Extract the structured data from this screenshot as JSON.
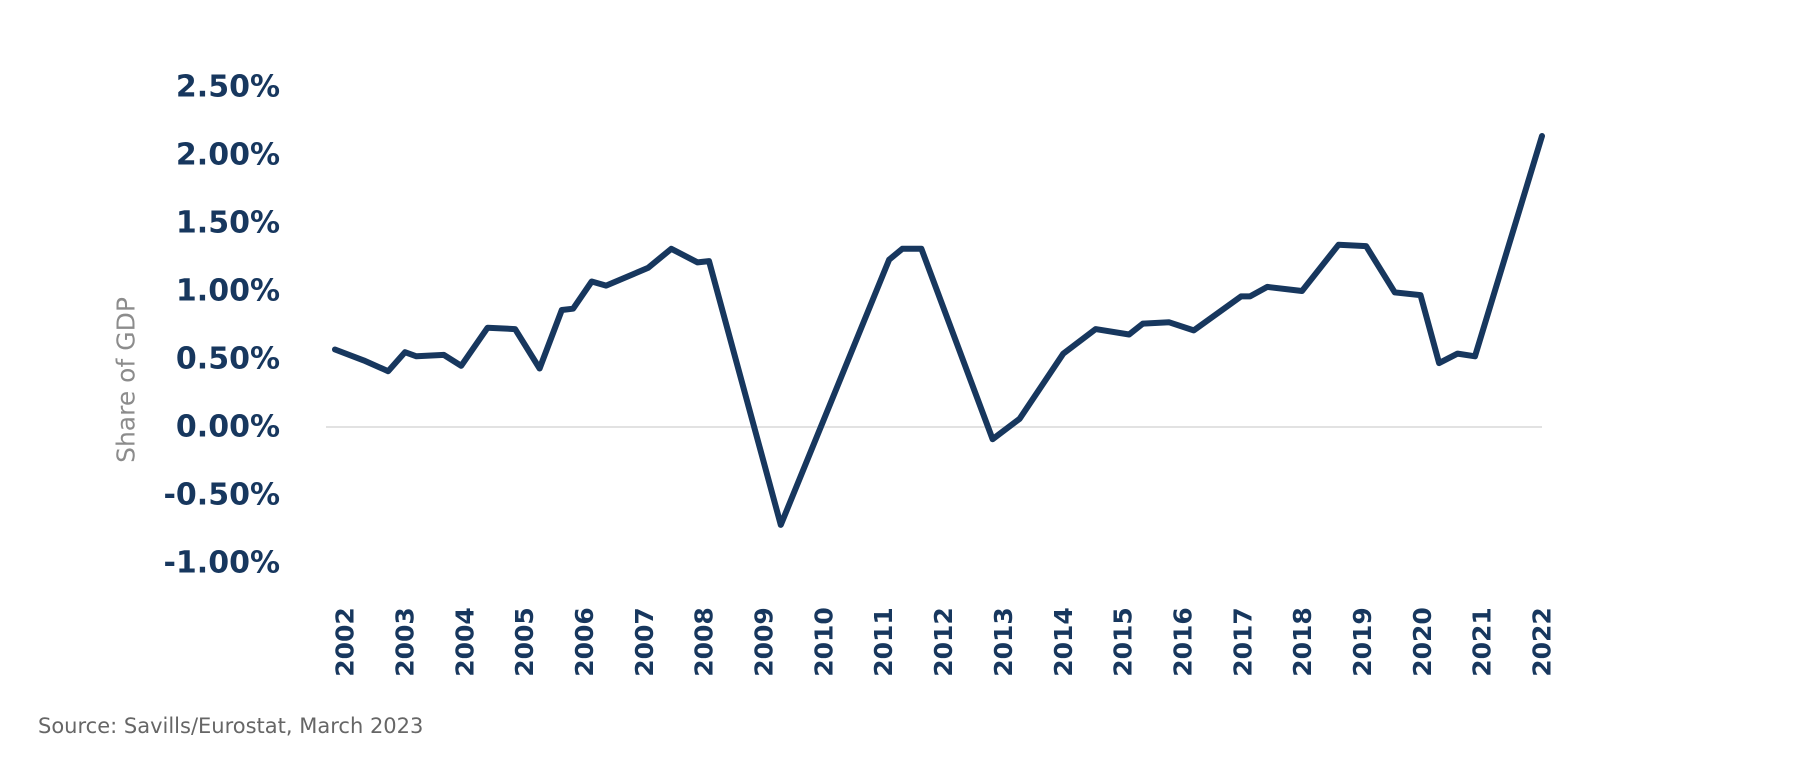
{
  "chart_data": {
    "type": "line",
    "title": "",
    "xlabel": "",
    "ylabel": "Share of GDP",
    "ylim": [
      -1.0,
      2.5
    ],
    "y_ticks": [
      2.5,
      2.0,
      1.5,
      1.0,
      0.5,
      0.0,
      -0.5,
      -1.0
    ],
    "y_tick_labels": [
      "2.50%",
      "2.00%",
      "1.50%",
      "1.00%",
      "0.50%",
      "0.00%",
      "-0.50%",
      "-1.00%"
    ],
    "x_ticks": [
      "2002",
      "2003",
      "2004",
      "2005",
      "2006",
      "2007",
      "2008",
      "2009",
      "2010",
      "2011",
      "2012",
      "2013",
      "2014",
      "2015",
      "2016",
      "2017",
      "2018",
      "2019",
      "2020",
      "2021",
      "2022"
    ],
    "x_range": [
      2001.68,
      2022.0
    ],
    "grid": "zero line only",
    "line_color": "#17375e",
    "series": [
      {
        "x": [
          2001.83,
          2002.31,
          2002.72,
          2003.0,
          2003.19,
          2003.65,
          2003.94,
          2004.38,
          2004.84,
          2005.25,
          2005.62,
          2005.81,
          2006.12,
          2006.36,
          2007.06,
          2007.45,
          2007.89,
          2008.08,
          2009.28,
          2011.09,
          2011.31,
          2011.63,
          2012.82,
          2013.27,
          2014.0,
          2014.54,
          2015.1,
          2015.33,
          2015.77,
          2016.18,
          2016.97,
          2017.12,
          2017.41,
          2017.99,
          2018.6,
          2019.06,
          2019.54,
          2019.97,
          2020.28,
          2020.59,
          2020.88,
          2022.0
        ],
        "values": [
          0.57,
          0.49,
          0.41,
          0.55,
          0.52,
          0.53,
          0.45,
          0.73,
          0.72,
          0.43,
          0.86,
          0.87,
          1.07,
          1.04,
          1.17,
          1.31,
          1.21,
          1.22,
          -0.72,
          1.23,
          1.31,
          1.31,
          -0.09,
          0.06,
          0.54,
          0.72,
          0.68,
          0.76,
          0.77,
          0.71,
          0.96,
          0.96,
          1.03,
          1.0,
          1.34,
          1.33,
          0.99,
          0.97,
          0.47,
          0.54,
          0.52,
          2.14
        ]
      }
    ]
  },
  "source": "Source: Savills/Eurostat, March 2023"
}
